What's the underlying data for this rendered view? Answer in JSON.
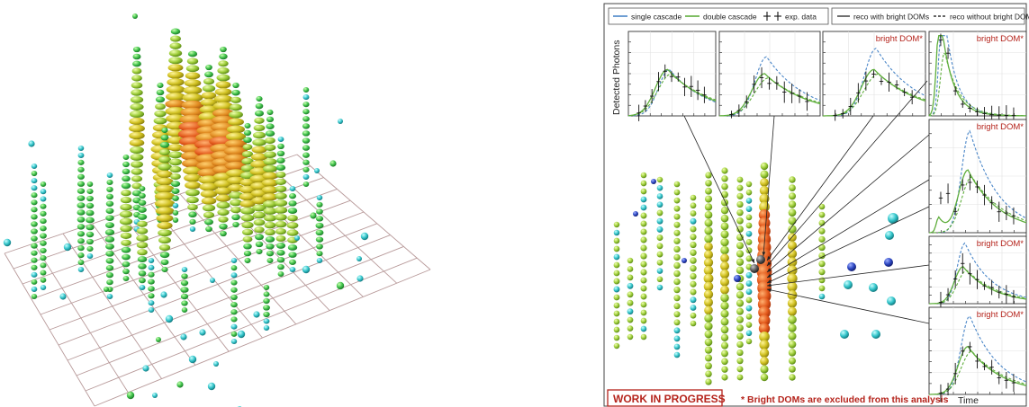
{
  "legend": {
    "single_cascade": "single cascade",
    "double_cascade": "double cascade",
    "exp_data": "exp. data",
    "reco_with": "reco with bright DOMs",
    "reco_without": "reco without bright DOMs"
  },
  "axis": {
    "ylabel": "Detected Photons",
    "xlabel": "Time"
  },
  "panel_tag": "bright DOM*",
  "footnote": "* Bright DOMs are excluded from this analysis",
  "badge": "WORK IN PROGRESS",
  "colors": {
    "single": "#4a86c8",
    "double": "#5fae3c",
    "data": "#111111",
    "tag": "#b5241c",
    "grid": "#b89a9a",
    "hot": "#e0501a",
    "mid": "#c9b220",
    "cool": "#3cc06a",
    "cold": "#33c6c6",
    "deep": "#2a3fb0"
  }
}
